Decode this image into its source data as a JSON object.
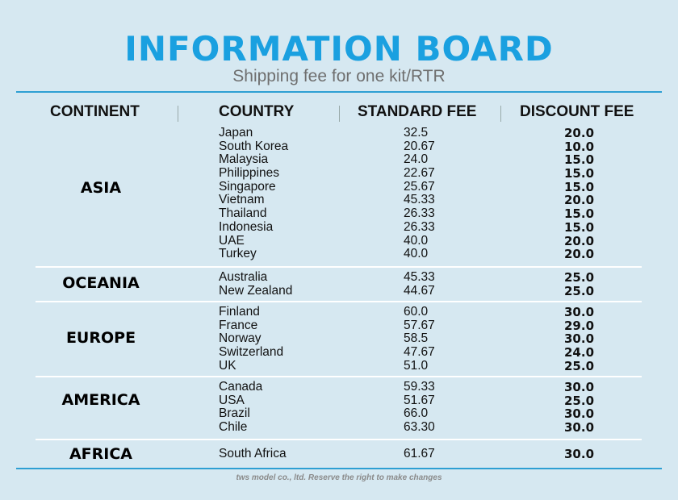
{
  "title": "INFORMATION BOARD",
  "subtitle": "Shipping fee for one kit/RTR",
  "headers": {
    "continent": "CONTINENT",
    "country": "COUNTRY",
    "standard_fee": "STANDARD FEE",
    "discount_fee": "DISCOUNT FEE"
  },
  "groups": [
    {
      "continent": "ASIA",
      "rows": [
        {
          "country": "Japan",
          "standard": "32.5",
          "discount": "20.0"
        },
        {
          "country": "South Korea",
          "standard": "20.67",
          "discount": "10.0"
        },
        {
          "country": "Malaysia",
          "standard": "24.0",
          "discount": "15.0"
        },
        {
          "country": "Philippines",
          "standard": "22.67",
          "discount": "15.0"
        },
        {
          "country": "Singapore",
          "standard": "25.67",
          "discount": "15.0"
        },
        {
          "country": "Vietnam",
          "standard": "45.33",
          "discount": "20.0"
        },
        {
          "country": "Thailand",
          "standard": "26.33",
          "discount": "15.0"
        },
        {
          "country": "Indonesia",
          "standard": "26.33",
          "discount": "15.0"
        },
        {
          "country": "UAE",
          "standard": "40.0",
          "discount": "20.0"
        },
        {
          "country": "Turkey",
          "standard": "40.0",
          "discount": "20.0"
        }
      ]
    },
    {
      "continent": "OCEANIA",
      "rows": [
        {
          "country": "Australia",
          "standard": "45.33",
          "discount": "25.0"
        },
        {
          "country": "New Zealand",
          "standard": "44.67",
          "discount": "25.0"
        }
      ]
    },
    {
      "continent": "EUROPE",
      "rows": [
        {
          "country": "Finland",
          "standard": "60.0",
          "discount": "30.0"
        },
        {
          "country": "France",
          "standard": "57.67",
          "discount": "29.0"
        },
        {
          "country": "Norway",
          "standard": "58.5",
          "discount": "30.0"
        },
        {
          "country": "Switzerland",
          "standard": "47.67",
          "discount": "24.0"
        },
        {
          "country": "UK",
          "standard": "51.0",
          "discount": "25.0"
        }
      ]
    },
    {
      "continent": "AMERICA",
      "rows": [
        {
          "country": "Canada",
          "standard": "59.33",
          "discount": "30.0"
        },
        {
          "country": "USA",
          "standard": "51.67",
          "discount": "25.0"
        },
        {
          "country": "Brazil",
          "standard": "66.0",
          "discount": "30.0"
        },
        {
          "country": "Chile",
          "standard": "63.30",
          "discount": "30.0"
        }
      ]
    },
    {
      "continent": "AFRICA",
      "rows": [
        {
          "country": "South Africa",
          "standard": "61.67",
          "discount": "30.0"
        }
      ]
    }
  ],
  "footer": "tws model co., ltd. Reserve the right to make changes"
}
